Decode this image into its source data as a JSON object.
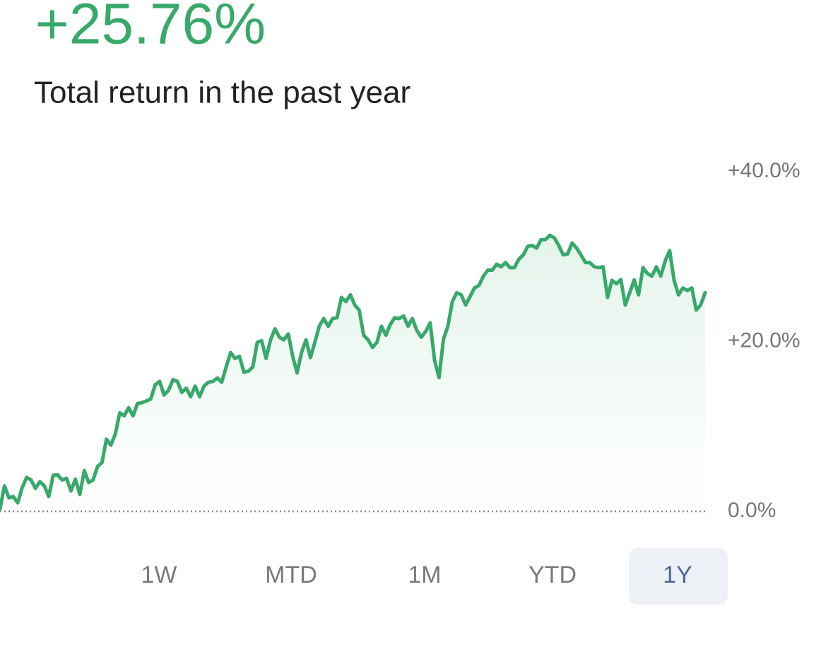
{
  "header": {
    "value": "+25.76%",
    "subtitle": "Total return in the past year"
  },
  "chart_data": {
    "type": "line",
    "color": "#38a96b",
    "values": [
      0.3,
      3.0,
      1.6,
      1.75,
      1.0,
      2.8,
      4.0,
      3.7,
      2.7,
      3.5,
      3.0,
      1.75,
      4.25,
      4.3,
      3.7,
      3.9,
      2.4,
      3.8,
      2.0,
      4.8,
      3.4,
      3.7,
      5.3,
      5.75,
      8.5,
      7.8,
      9.1,
      11.6,
      11.25,
      12.2,
      11.25,
      12.7,
      12.8,
      13.0,
      13.25,
      14.9,
      15.3,
      13.7,
      14.25,
      15.5,
      15.3,
      14.0,
      14.5,
      13.5,
      14.75,
      13.5,
      14.75,
      15.2,
      15.3,
      15.7,
      15.2,
      17.0,
      18.7,
      18.0,
      18.25,
      16.4,
      16.5,
      17.0,
      19.9,
      20.1,
      18.0,
      20.2,
      21.5,
      20.5,
      20.2,
      20.9,
      18.25,
      16.3,
      18.7,
      20.2,
      18.1,
      19.9,
      21.8,
      22.7,
      21.8,
      22.7,
      22.8,
      25.2,
      24.7,
      25.5,
      24.3,
      23.7,
      20.75,
      20.2,
      19.3,
      19.9,
      21.8,
      20.75,
      22.0,
      22.8,
      22.7,
      23.0,
      21.8,
      22.7,
      21.3,
      20.5,
      21.2,
      22.2,
      17.8,
      15.75,
      20.3,
      21.8,
      24.7,
      25.75,
      25.5,
      24.3,
      25.3,
      26.3,
      26.6,
      27.7,
      28.4,
      28.4,
      29.1,
      28.8,
      29.3,
      28.7,
      28.7,
      29.7,
      30.2,
      31.2,
      31.3,
      31.0,
      32.0,
      32.0,
      32.5,
      32.2,
      31.3,
      30.2,
      30.3,
      31.6,
      31.0,
      30.2,
      29.3,
      29.3,
      28.8,
      28.7,
      28.8,
      25.2,
      27.2,
      26.8,
      27.3,
      24.3,
      25.75,
      27.25,
      25.5,
      28.7,
      28.0,
      27.7,
      28.8,
      27.7,
      29.5,
      30.7,
      27.2,
      25.5,
      26.3,
      26.0,
      26.3,
      23.7,
      24.3,
      25.75
    ],
    "ylim": [
      0,
      40
    ],
    "yticks": [
      {
        "value": 0,
        "label": "0.0%"
      },
      {
        "value": 20,
        "label": "+20.0%"
      },
      {
        "value": 40,
        "label": "+40.0%"
      }
    ],
    "zero_line": true,
    "area_fill": true
  },
  "range_buttons": {
    "options": [
      "1W",
      "MTD",
      "1M",
      "YTD",
      "1Y"
    ],
    "selected": 4
  }
}
